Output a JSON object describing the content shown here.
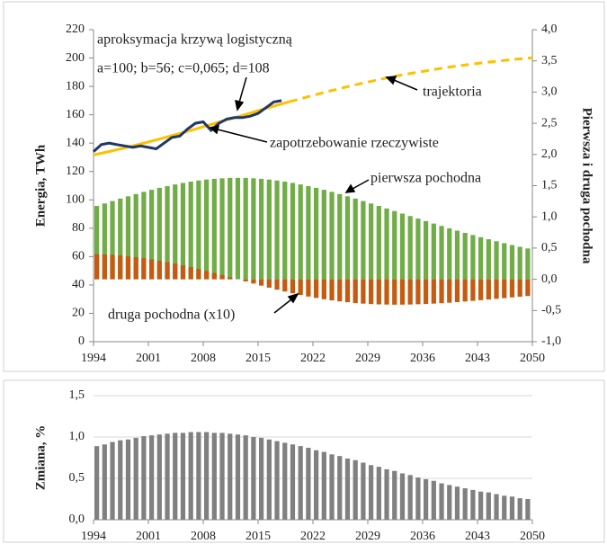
{
  "chart_data": [
    {
      "type": "combo",
      "annotations": [
        "aproksymacja krzywą logistyczną",
        "a=100;  b=56; c=0,065;  d=108"
      ],
      "y_label": "Energia, TWh",
      "y2_label": "Pierwsza i druga pochodna",
      "x": [
        1994,
        1995,
        1996,
        1997,
        1998,
        1999,
        2000,
        2001,
        2002,
        2003,
        2004,
        2005,
        2006,
        2007,
        2008,
        2009,
        2010,
        2011,
        2012,
        2013,
        2014,
        2015,
        2016,
        2017,
        2018,
        2019,
        2020,
        2021,
        2022,
        2023,
        2024,
        2025,
        2026,
        2027,
        2028,
        2029,
        2030,
        2031,
        2032,
        2033,
        2034,
        2035,
        2036,
        2037,
        2038,
        2039,
        2040,
        2041,
        2042,
        2043,
        2044,
        2045,
        2046,
        2047,
        2048,
        2049
      ],
      "xlim": [
        1994,
        2050
      ],
      "xticks": [
        1994,
        2001,
        2008,
        2015,
        2022,
        2029,
        2036,
        2043,
        2050
      ],
      "ylim": [
        0,
        220
      ],
      "yticks": [
        0,
        20,
        40,
        60,
        80,
        100,
        120,
        140,
        160,
        180,
        200,
        220
      ],
      "y2lim": [
        -1,
        4
      ],
      "y2ticks": [
        {
          "value": -1,
          "label": "-1,0"
        },
        {
          "value": -0.5,
          "label": "-0,5"
        },
        {
          "value": 0,
          "label": "0,0"
        },
        {
          "value": 0.5,
          "label": "0,5"
        },
        {
          "value": 1,
          "label": "1,0"
        },
        {
          "value": 1.5,
          "label": "1,5"
        },
        {
          "value": 2,
          "label": "2,0"
        },
        {
          "value": 2.5,
          "label": "2,5"
        },
        {
          "value": 3,
          "label": "3,0"
        },
        {
          "value": 3.5,
          "label": "3,5"
        },
        {
          "value": 4,
          "label": "4,0"
        }
      ],
      "grid": false,
      "series": [
        {
          "name": "zapotrzebowanie rzeczywiste",
          "type": "line",
          "color": "#1f3864",
          "x": [
            1994,
            1995,
            1996,
            1997,
            1998,
            1999,
            2000,
            2001,
            2002,
            2003,
            2004,
            2005,
            2006,
            2007,
            2008,
            2009,
            2010,
            2011,
            2012,
            2013,
            2014,
            2015,
            2016,
            2017,
            2018
          ],
          "values": [
            134,
            139,
            140,
            139,
            138,
            137,
            138,
            137,
            136,
            140,
            144,
            145,
            150,
            154,
            155,
            149,
            154,
            157,
            158,
            158,
            159,
            161,
            165,
            169,
            170
          ]
        },
        {
          "name": "trajektoria",
          "type": "line",
          "color": "#ffc000",
          "dashed_from": 2019,
          "x": [
            1994,
            1995,
            1996,
            1997,
            1998,
            1999,
            2000,
            2001,
            2002,
            2003,
            2004,
            2005,
            2006,
            2007,
            2008,
            2009,
            2010,
            2011,
            2012,
            2013,
            2014,
            2015,
            2016,
            2017,
            2018,
            2019,
            2020,
            2021,
            2022,
            2023,
            2024,
            2025,
            2026,
            2027,
            2028,
            2029,
            2030,
            2031,
            2032,
            2033,
            2034,
            2035,
            2036,
            2037,
            2038,
            2039,
            2040,
            2041,
            2042,
            2043,
            2044,
            2045,
            2046,
            2047,
            2048,
            2049,
            2050
          ],
          "values": [
            131.7,
            132.9,
            134.1,
            135.4,
            136.7,
            138.1,
            139.4,
            140.9,
            142.3,
            143.8,
            145.3,
            146.8,
            148.4,
            149.9,
            151.5,
            153.1,
            154.8,
            156.4,
            158.0,
            159.6,
            161.2,
            162.9,
            164.5,
            166.1,
            167.6,
            169.2,
            170.7,
            172.2,
            173.7,
            175.1,
            176.6,
            177.9,
            179.3,
            180.6,
            181.9,
            183.1,
            184.3,
            185.5,
            186.6,
            187.7,
            188.7,
            189.7,
            190.6,
            191.5,
            192.4,
            193.3,
            194.1,
            194.8,
            195.5,
            196.2,
            196.9,
            197.5,
            198.1,
            198.7,
            199.2,
            199.7,
            200.2
          ]
        },
        {
          "name": "pierwsza pochodna",
          "type": "bar",
          "axis": "y2",
          "color": "#70ad47",
          "values": [
            1.175,
            1.215,
            1.254,
            1.293,
            1.33,
            1.366,
            1.401,
            1.434,
            1.465,
            1.493,
            1.52,
            1.544,
            1.565,
            1.583,
            1.598,
            1.61,
            1.618,
            1.624,
            1.625,
            1.624,
            1.618,
            1.61,
            1.598,
            1.583,
            1.565,
            1.544,
            1.52,
            1.493,
            1.465,
            1.434,
            1.401,
            1.366,
            1.33,
            1.293,
            1.254,
            1.215,
            1.175,
            1.135,
            1.094,
            1.053,
            1.013,
            0.973,
            0.933,
            0.893,
            0.855,
            0.817,
            0.78,
            0.744,
            0.709,
            0.675,
            0.642,
            0.61,
            0.579,
            0.549,
            0.521,
            0.494
          ]
        },
        {
          "name": "druga pochodna (x10)",
          "type": "bar",
          "axis": "y2",
          "color": "#c55a11",
          "values": [
            0.402,
            0.397,
            0.39,
            0.38,
            0.368,
            0.354,
            0.338,
            0.32,
            0.299,
            0.276,
            0.251,
            0.224,
            0.196,
            0.166,
            0.134,
            0.102,
            0.068,
            0.034,
            0,
            -0.034,
            -0.068,
            -0.102,
            -0.134,
            -0.166,
            -0.196,
            -0.224,
            -0.251,
            -0.276,
            -0.299,
            -0.32,
            -0.338,
            -0.354,
            -0.368,
            -0.38,
            -0.39,
            -0.397,
            -0.402,
            -0.405,
            -0.407,
            -0.406,
            -0.404,
            -0.4,
            -0.396,
            -0.39,
            -0.382,
            -0.375,
            -0.366,
            -0.356,
            -0.346,
            -0.335,
            -0.324,
            -0.313,
            -0.302,
            -0.29,
            -0.279,
            -0.268
          ]
        }
      ]
    },
    {
      "type": "bar",
      "y_label": "Zmiana, %",
      "x": [
        1994,
        1995,
        1996,
        1997,
        1998,
        1999,
        2000,
        2001,
        2002,
        2003,
        2004,
        2005,
        2006,
        2007,
        2008,
        2009,
        2010,
        2011,
        2012,
        2013,
        2014,
        2015,
        2016,
        2017,
        2018,
        2019,
        2020,
        2021,
        2022,
        2023,
        2024,
        2025,
        2026,
        2027,
        2028,
        2029,
        2030,
        2031,
        2032,
        2033,
        2034,
        2035,
        2036,
        2037,
        2038,
        2039,
        2040,
        2041,
        2042,
        2043,
        2044,
        2045,
        2046,
        2047,
        2048,
        2049
      ],
      "xlim": [
        1994,
        2050
      ],
      "xticks": [
        1994,
        2001,
        2008,
        2015,
        2022,
        2029,
        2036,
        2043,
        2050
      ],
      "ylim": [
        0,
        1.5
      ],
      "yticks": [
        {
          "value": 0,
          "label": "0,0"
        },
        {
          "value": 0.5,
          "label": "0,5"
        },
        {
          "value": 1,
          "label": "1,0"
        },
        {
          "value": 1.5,
          "label": "1,5"
        }
      ],
      "grid": true,
      "color": "#808080",
      "values": [
        0.89,
        0.91,
        0.94,
        0.96,
        0.97,
        0.99,
        1.01,
        1.02,
        1.03,
        1.04,
        1.05,
        1.05,
        1.06,
        1.06,
        1.06,
        1.05,
        1.05,
        1.04,
        1.03,
        1.02,
        1.0,
        0.99,
        0.97,
        0.95,
        0.93,
        0.91,
        0.89,
        0.87,
        0.84,
        0.82,
        0.79,
        0.77,
        0.74,
        0.72,
        0.69,
        0.66,
        0.64,
        0.61,
        0.59,
        0.56,
        0.54,
        0.51,
        0.49,
        0.47,
        0.44,
        0.42,
        0.4,
        0.38,
        0.36,
        0.34,
        0.33,
        0.31,
        0.29,
        0.28,
        0.26,
        0.25
      ]
    }
  ]
}
